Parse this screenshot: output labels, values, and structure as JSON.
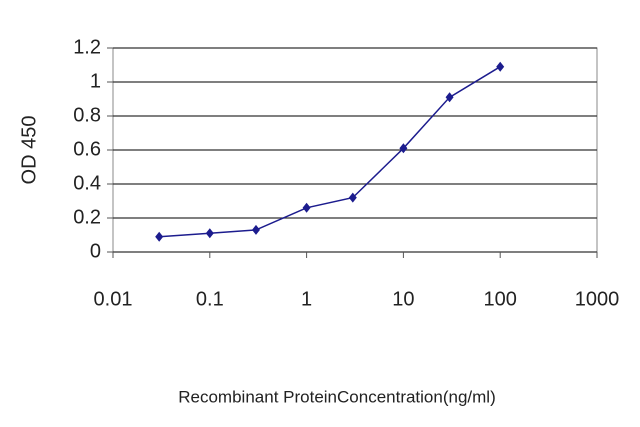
{
  "chart_data": {
    "type": "line",
    "x_label": "Recombinant ProteinConcentration(ng/ml)",
    "y_label": "OD 450",
    "x": [
      0.03,
      0.1,
      0.3,
      1,
      3,
      10,
      30,
      100
    ],
    "series": [
      {
        "name": null,
        "color": "#1c1c8e",
        "values": [
          0.09,
          0.11,
          0.13,
          0.26,
          0.32,
          0.61,
          0.91,
          1.09
        ]
      }
    ],
    "xlim": [
      0.01,
      1000
    ],
    "xticks": [
      0.01,
      0.1,
      1,
      10,
      100,
      1000
    ],
    "x_log": true,
    "ylim": [
      0,
      1.2
    ],
    "yticks": [
      0,
      0.2,
      0.4,
      0.6,
      0.8,
      1,
      1.2
    ],
    "grid": true
  }
}
